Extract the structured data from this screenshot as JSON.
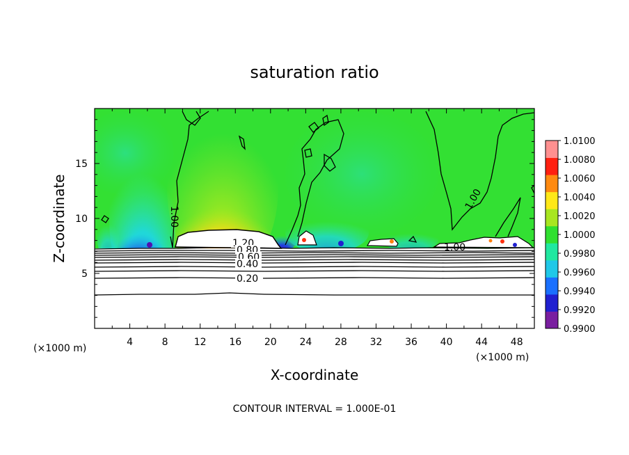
{
  "chart_data": {
    "type": "heatmap",
    "title": "saturation ratio",
    "xlabel": "X-coordinate",
    "ylabel": "Z-coordinate",
    "x_unit": "(×1000 m)",
    "xlim": [
      0,
      50
    ],
    "ylim": [
      0,
      20
    ],
    "x_ticks": [
      4,
      8,
      12,
      16,
      20,
      24,
      28,
      32,
      36,
      40,
      44,
      48
    ],
    "y_ticks": [
      5,
      10,
      15
    ],
    "colorbar": {
      "min": 0.99,
      "max": 1.01,
      "ticks": [
        "1.0100",
        "1.0080",
        "1.0060",
        "1.0040",
        "1.0020",
        "1.0000",
        "0.9980",
        "0.9960",
        "0.9940",
        "0.9920",
        "0.9900"
      ],
      "colors": [
        "#7a1fa0",
        "#2020d0",
        "#1a70ff",
        "#20c8e8",
        "#20e8a0",
        "#30e030",
        "#a8e620",
        "#ffe818",
        "#ff8a10",
        "#ff2010",
        "#ff9090"
      ]
    },
    "contour_labels": [
      "1.20",
      "0.80",
      "0.60",
      "0.40",
      "0.20",
      "1.00",
      "1.00",
      "1.00"
    ],
    "contour_interval": "CONTOUR INTERVAL = 1.000E-01"
  }
}
